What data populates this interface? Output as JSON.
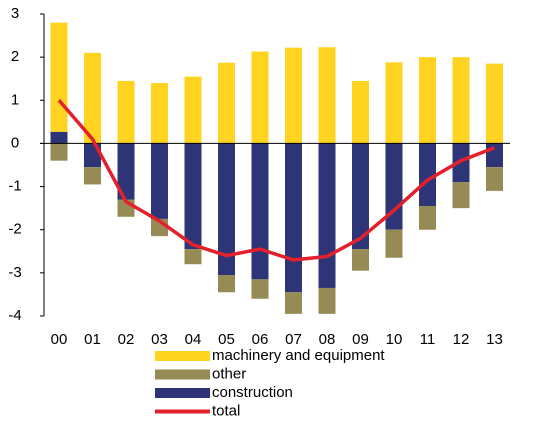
{
  "chart_data": {
    "type": "bar",
    "stacked": true,
    "categories": [
      "00",
      "01",
      "02",
      "03",
      "04",
      "05",
      "06",
      "07",
      "08",
      "09",
      "10",
      "11",
      "12",
      "13"
    ],
    "series": [
      {
        "name": "machinery and equipment",
        "color": "#FFD320",
        "values": [
          2.53,
          2.1,
          1.45,
          1.4,
          1.55,
          1.87,
          2.13,
          2.22,
          2.23,
          1.45,
          1.88,
          2.0,
          2.0,
          1.85
        ]
      },
      {
        "name": "other",
        "color": "#968B54",
        "values": [
          -0.4,
          -0.4,
          -0.4,
          -0.4,
          -0.35,
          -0.4,
          -0.45,
          -0.5,
          -0.6,
          -0.5,
          -0.65,
          -0.55,
          -0.6,
          -0.55
        ]
      },
      {
        "name": "construction",
        "color": "#2E3576",
        "values": [
          0.27,
          -0.55,
          -1.3,
          -1.75,
          -2.45,
          -3.05,
          -3.15,
          -3.45,
          -3.35,
          -2.45,
          -2.0,
          -1.45,
          -0.9,
          -0.55
        ]
      },
      {
        "name": "total",
        "type": "line",
        "color": "#E3202B",
        "values": [
          1.0,
          0.1,
          -1.35,
          -1.8,
          -2.35,
          -2.6,
          -2.45,
          -2.7,
          -2.62,
          -2.2,
          -1.55,
          -0.85,
          -0.4,
          -0.1
        ]
      }
    ],
    "ylim": [
      -4,
      3
    ],
    "yticks": [
      -4,
      -3,
      -2,
      -1,
      0,
      1,
      2,
      3
    ]
  }
}
